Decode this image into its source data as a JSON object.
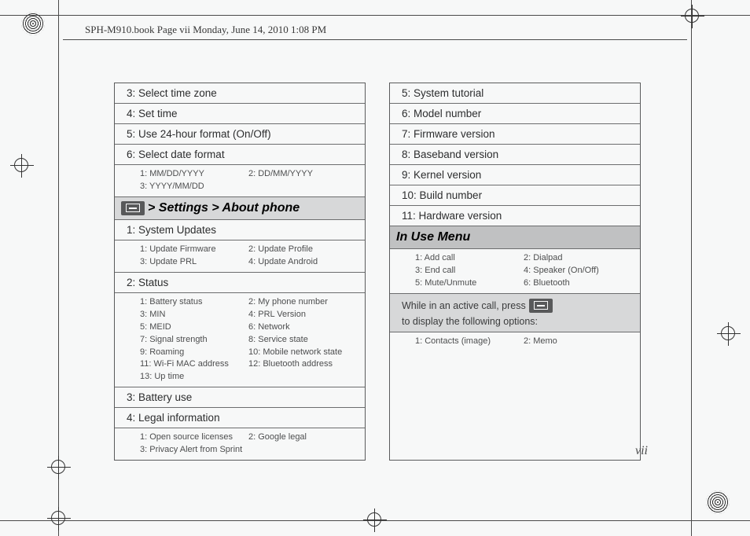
{
  "header": "SPH-M910.book  Page vii  Monday, June 14, 2010  1:08 PM",
  "pageNumber": "vii",
  "left": {
    "rows": [
      {
        "t": "row",
        "text": "3: Select time zone"
      },
      {
        "t": "row",
        "text": "4: Set time"
      },
      {
        "t": "row",
        "text": "5: Use 24-hour format (On/Off)"
      },
      {
        "t": "row",
        "text": "6: Select date format"
      },
      {
        "t": "sub",
        "c1": [
          "1: MM/DD/YYYY",
          "3: YYYY/MM/DD"
        ],
        "c2": [
          "2: DD/MM/YYYY"
        ]
      },
      {
        "t": "hdr",
        "icon": true,
        "text": " > Settings > About phone"
      },
      {
        "t": "row",
        "text": "1: System Updates"
      },
      {
        "t": "sub",
        "c1": [
          "1: Update Firmware",
          "3: Update PRL"
        ],
        "c2": [
          "2: Update Profile",
          "4: Update Android"
        ]
      },
      {
        "t": "row",
        "text": "2: Status"
      },
      {
        "t": "sub",
        "c1": [
          "1: Battery status",
          "3: MIN",
          "5: MEID",
          "7: Signal strength",
          "9: Roaming",
          "11: Wi-Fi MAC address",
          "13: Up time"
        ],
        "c2": [
          "2: My phone number",
          "4: PRL Version",
          "6: Network",
          "8: Service state",
          "10: Mobile network state",
          "12: Bluetooth address"
        ]
      },
      {
        "t": "row",
        "text": "3: Battery use"
      },
      {
        "t": "row",
        "text": "4: Legal information"
      },
      {
        "t": "sub",
        "c1": [
          "1: Open source licenses",
          "3: Privacy Alert from Sprint"
        ],
        "c2": [
          "2: Google legal"
        ]
      }
    ]
  },
  "right": {
    "rows": [
      {
        "t": "row",
        "text": "5: System tutorial"
      },
      {
        "t": "row",
        "text": "6: Model number"
      },
      {
        "t": "row",
        "text": "7: Firmware version"
      },
      {
        "t": "row",
        "text": "8: Baseband version"
      },
      {
        "t": "row",
        "text": "9: Kernel version"
      },
      {
        "t": "row",
        "text": "10: Build number"
      },
      {
        "t": "row",
        "text": "11: Hardware version"
      },
      {
        "t": "section",
        "text": "In Use Menu"
      },
      {
        "t": "sub",
        "c1": [
          "1: Add call",
          "3: End call",
          "5: Mute/Unmute"
        ],
        "c2": [
          "2: Dialpad",
          "4: Speaker (On/Off)",
          "6: Bluetooth"
        ]
      },
      {
        "t": "note",
        "pre": "While in an active call, press ",
        "post": " to display the following options:"
      },
      {
        "t": "sub",
        "c1": [
          "1: Contacts (image)"
        ],
        "c2": [
          "2: Memo"
        ]
      }
    ]
  }
}
